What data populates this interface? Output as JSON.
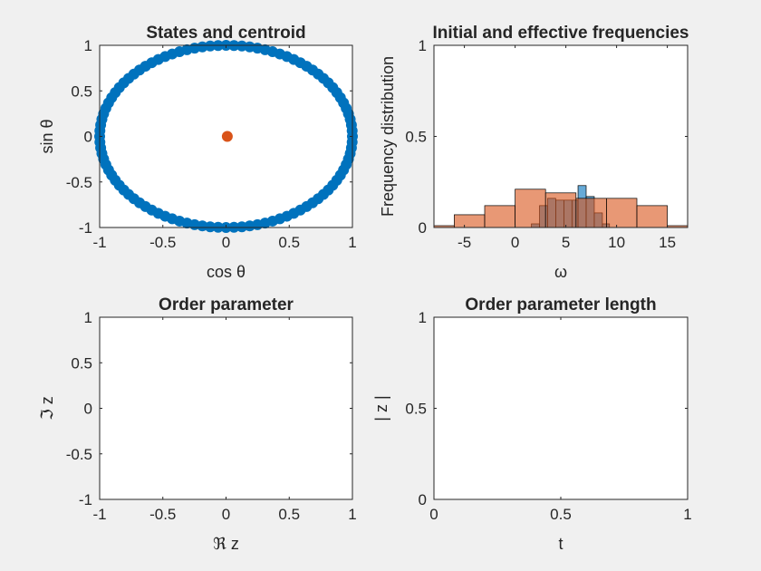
{
  "chart_data": [
    {
      "type": "scatter",
      "title": "States and centroid",
      "xlabel": "cos θ",
      "ylabel": "sin θ",
      "xlim": [
        -1,
        1
      ],
      "ylim": [
        -1,
        1
      ],
      "xticks": [
        "-1",
        "-0.5",
        "0",
        "0.5",
        "1"
      ],
      "yticks": [
        "-1",
        "-0.5",
        "0",
        "0.5",
        "1"
      ],
      "grid": false,
      "series": [
        {
          "values": "100 oscillator phases evenly covering the unit circle",
          "count": 100,
          "radius": 1,
          "color": "#0072BD"
        },
        {
          "x": [
            0.01
          ],
          "y": [
            0.0
          ],
          "color": "#D95319"
        }
      ]
    },
    {
      "type": "bar",
      "title": "Initial and effective frequencies",
      "xlabel": "ω",
      "ylabel": "Frequency distribution",
      "xlim": [
        -8,
        17
      ],
      "ylim": [
        0,
        1
      ],
      "xticks": [
        "-5",
        "0",
        "5",
        "10",
        "15"
      ],
      "yticks": [
        "0",
        "0.5",
        "1"
      ],
      "grid": false,
      "series": [
        {
          "color": "#0072BD",
          "bins": [
            {
              "x0": 1.6,
              "x1": 2.4,
              "value": 0.02
            },
            {
              "x0": 2.4,
              "x1": 3.2,
              "value": 0.12
            },
            {
              "x0": 3.2,
              "x1": 4.0,
              "value": 0.16
            },
            {
              "x0": 4.0,
              "x1": 4.8,
              "value": 0.15
            },
            {
              "x0": 4.8,
              "x1": 5.6,
              "value": 0.15
            },
            {
              "x0": 5.6,
              "x1": 6.2,
              "value": 0.15
            },
            {
              "x0": 6.2,
              "x1": 7.0,
              "value": 0.23
            },
            {
              "x0": 7.0,
              "x1": 7.8,
              "value": 0.17
            },
            {
              "x0": 7.8,
              "x1": 8.6,
              "value": 0.08
            },
            {
              "x0": 8.6,
              "x1": 9.3,
              "value": 0.02
            }
          ]
        },
        {
          "color": "#D95319",
          "bins": [
            {
              "x0": -8.0,
              "x1": -6.0,
              "value": 0.01
            },
            {
              "x0": -6.0,
              "x1": -3.0,
              "value": 0.07
            },
            {
              "x0": -3.0,
              "x1": 0.0,
              "value": 0.12
            },
            {
              "x0": 0.0,
              "x1": 3.0,
              "value": 0.21
            },
            {
              "x0": 3.0,
              "x1": 6.0,
              "value": 0.19
            },
            {
              "x0": 6.0,
              "x1": 9.0,
              "value": 0.16
            },
            {
              "x0": 9.0,
              "x1": 12.0,
              "value": 0.16
            },
            {
              "x0": 12.0,
              "x1": 15.0,
              "value": 0.12
            },
            {
              "x0": 15.0,
              "x1": 17.0,
              "value": 0.01
            }
          ]
        }
      ]
    },
    {
      "type": "line",
      "title": "Order parameter",
      "xlabel": "ℜ z",
      "ylabel": "ℑ z",
      "xlim": [
        -1,
        1
      ],
      "ylim": [
        -1,
        1
      ],
      "xticks": [
        "-1",
        "-0.5",
        "0",
        "0.5",
        "1"
      ],
      "yticks": [
        "-1",
        "-0.5",
        "0",
        "0.5",
        "1"
      ],
      "grid": false,
      "series": []
    },
    {
      "type": "line",
      "title": "Order parameter length",
      "xlabel": "t",
      "ylabel": "| z |",
      "xlim": [
        0,
        1
      ],
      "ylim": [
        0,
        1
      ],
      "xticks": [
        "0",
        "0.5",
        "1"
      ],
      "yticks": [
        "0",
        "0.5",
        "1"
      ],
      "grid": false,
      "series": []
    }
  ]
}
